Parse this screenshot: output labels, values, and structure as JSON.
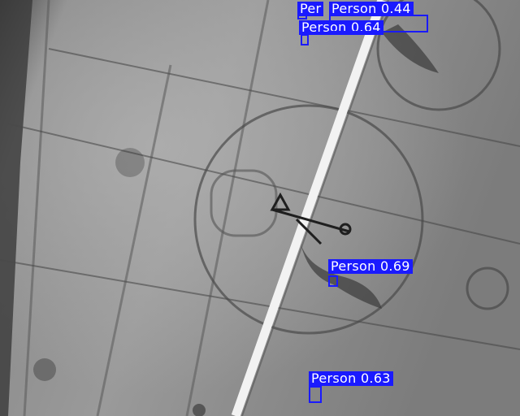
{
  "detections": [
    {
      "label": "Person 0.64"
    },
    {
      "label": "Per"
    },
    {
      "label": "Person 0.44"
    },
    {
      "label": "Person 0.69"
    },
    {
      "label": "Person 0.63"
    }
  ],
  "colors": {
    "box": "#1a1aff",
    "label_text": "#ffffff"
  }
}
